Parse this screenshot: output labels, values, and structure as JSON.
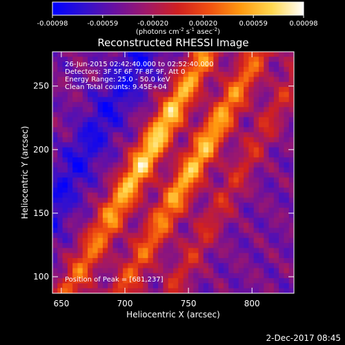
{
  "chart_data": {
    "type": "heatmap",
    "title": "Reconstructed RHESSI Image",
    "xlabel": "Heliocentric X (arcsec)",
    "ylabel": "Heliocentric Y (arcsec)",
    "xlim": [
      643,
      833
    ],
    "ylim": [
      87,
      277
    ],
    "x_ticks": [
      650,
      700,
      750,
      800
    ],
    "y_ticks": [
      100,
      150,
      200,
      250
    ],
    "colorbar": {
      "range": [
        -0.00098,
        0.00098
      ],
      "ticks": [
        "-0.00098",
        "-0.00059",
        "-0.00020",
        "0.00020",
        "0.00059",
        "0.00098"
      ],
      "colors": [
        "#0000ff",
        "#3010d0",
        "#6a10a0",
        "#a01868",
        "#d02020",
        "#f05010",
        "#ff9a10",
        "#ffd850",
        "#ffffff"
      ]
    },
    "annotations": [
      "26-Jun-2015 02:42:40.000 to 02:52:40.000",
      "Detectors: 3F 5F 6F 7F 8F 9F, Att 0",
      "Energy Range: 25.0 - 50.0 keV",
      "Clean     Total counts: 9.45E+04"
    ],
    "peak_label": "Position of Peak = [681,237]",
    "date_stamp": "2-Dec-2017 08:45"
  }
}
